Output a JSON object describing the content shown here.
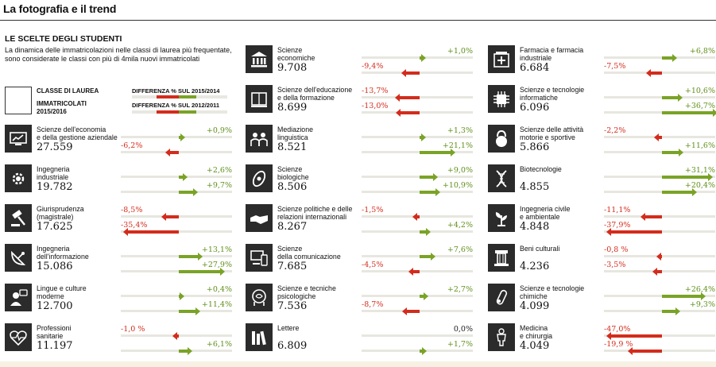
{
  "header": {
    "title": "La fotografia e il trend"
  },
  "chart_data": {
    "type": "bar",
    "subtitle": "LE SCELTE DEGLI STUDENTI",
    "intro_lines": [
      "La dinamica delle immatricolazioni nelle classi di laurea più frequentate,",
      "sono considerate le classi con più di 4mila nuovi immatricolati"
    ],
    "legend": {
      "class_label": "CLASSE DI LAUREA",
      "enrolled_label_1": "IMMATRICOLATI",
      "enrolled_label_2": "2015/2016"
    },
    "series": [
      {
        "name": "DIFFERENZA % SUL 2015/2014"
      },
      {
        "name": "DIFFERENZA % SUL 2012/2011"
      }
    ],
    "colors": {
      "positive": "#7aa326",
      "negative": "#d32c1c",
      "track": "#e7e7e0",
      "icon_bg": "#2b2b2b"
    },
    "classes": [
      {
        "name": [
          "Scienze dell'economia",
          "e della gestione aziendale"
        ],
        "enrolled": "27.559",
        "d1": 0.9,
        "d1_label": "+0,9%",
        "d2": -6.2,
        "d2_label": "-6,2%",
        "icon": "chart-icon"
      },
      {
        "name": [
          "Ingegneria",
          "industriale"
        ],
        "enrolled": "19.782",
        "d1": 2.6,
        "d1_label": "+2,6%",
        "d2": 9.7,
        "d2_label": "+9,7%",
        "icon": "gear-icon"
      },
      {
        "name": [
          "Giurisprudenza",
          "(magistrale)"
        ],
        "enrolled": "17.625",
        "d1": -8.5,
        "d1_label": "-8,5%",
        "d2": -35.4,
        "d2_label": "-35,4%",
        "icon": "gavel-icon"
      },
      {
        "name": [
          "Ingegneria",
          "dell'informazione"
        ],
        "enrolled": "15.086",
        "d1": 13.1,
        "d1_label": "+13,1%",
        "d2": 27.9,
        "d2_label": "+27,9%",
        "icon": "satellite-dish-icon"
      },
      {
        "name": [
          "Lingue e culture",
          "moderne"
        ],
        "enrolled": "12.700",
        "d1": 0.4,
        "d1_label": "+0,4%",
        "d2": 11.4,
        "d2_label": "+11,4%",
        "icon": "speech-icon"
      },
      {
        "name": [
          "Professioni",
          "sanitarie"
        ],
        "enrolled": "11.197",
        "d1": -1.0,
        "d1_label": "-1,0 %",
        "d2": 6.1,
        "d2_label": "+6,1%",
        "icon": "heartbeat-icon"
      },
      {
        "name": [
          "Scienze",
          "economiche"
        ],
        "enrolled": "9.708",
        "d1": 1.0,
        "d1_label": "+1,0%",
        "d2": -9.4,
        "d2_label": "-9,4%",
        "icon": "bank-icon"
      },
      {
        "name": [
          "Scienze dell'educazione",
          "e della formazione"
        ],
        "enrolled": "8.699",
        "d1": -13.7,
        "d1_label": "-13,7%",
        "d2": -13.0,
        "d2_label": "-13,0%",
        "icon": "book-icon"
      },
      {
        "name": [
          "Mediazione",
          "linguistica"
        ],
        "enrolled": "8.521",
        "d1": 1.3,
        "d1_label": "+1,3%",
        "d2": 21.1,
        "d2_label": "+21,1%",
        "icon": "people-icon"
      },
      {
        "name": [
          "Scienze",
          "biologiche"
        ],
        "enrolled": "8.506",
        "d1": 9.0,
        "d1_label": "+9,0%",
        "d2": 10.9,
        "d2_label": "+10,9%",
        "icon": "cell-icon"
      },
      {
        "name": [
          "Scienze politiche e delle",
          "relazioni internazionali"
        ],
        "enrolled": "8.267",
        "d1": -1.5,
        "d1_label": "-1,5%",
        "d2": 4.2,
        "d2_label": "+4,2%",
        "icon": "handshake-icon"
      },
      {
        "name": [
          "Scienze",
          "della comunicazione"
        ],
        "enrolled": "7.685",
        "d1": 7.6,
        "d1_label": "+7,6%",
        "d2": -4.5,
        "d2_label": "-4,5%",
        "icon": "devices-icon"
      },
      {
        "name": [
          "Scienze e tecniche",
          "psicologiche"
        ],
        "enrolled": "7.536",
        "d1": 2.7,
        "d1_label": "+2,7%",
        "d2": -8.7,
        "d2_label": "-8,7%",
        "icon": "brain-icon"
      },
      {
        "name": [
          "Lettere",
          ""
        ],
        "enrolled": "6.809",
        "d1": 0.0,
        "d1_label": "0,0%",
        "d2": 1.7,
        "d2_label": "+1,7%",
        "icon": "books-icon"
      },
      {
        "name": [
          "Farmacia e farmacia",
          "industriale"
        ],
        "enrolled": "6.684",
        "d1": 6.8,
        "d1_label": "+6,8%",
        "d2": -7.5,
        "d2_label": "-7,5%",
        "icon": "pharmacy-icon"
      },
      {
        "name": [
          "Scienze e tecnologie",
          "informatiche"
        ],
        "enrolled": "6.096",
        "d1": 10.6,
        "d1_label": "+10,6%",
        "d2": 36.7,
        "d2_label": "+36,7%",
        "icon": "chip-icon"
      },
      {
        "name": [
          "Scienze delle attività",
          "motorie e sportive"
        ],
        "enrolled": "5.866",
        "d1": -2.2,
        "d1_label": "-2,2%",
        "d2": 11.6,
        "d2_label": "+11,6%",
        "icon": "kettlebell-icon"
      },
      {
        "name": [
          "Biotecnologie",
          ""
        ],
        "enrolled": "4.855",
        "d1": 31.1,
        "d1_label": "+31,1%",
        "d2": 20.4,
        "d2_label": "+20,4%",
        "icon": "dna-icon"
      },
      {
        "name": [
          "Ingegneria civile",
          "e ambientale"
        ],
        "enrolled": "4.848",
        "d1": -11.1,
        "d1_label": "-11,1%",
        "d2": -37.9,
        "d2_label": "-37,9%",
        "icon": "plant-icon"
      },
      {
        "name": [
          "Beni culturali",
          ""
        ],
        "enrolled": "4.236",
        "d1": -0.8,
        "d1_label": "-0,8 %",
        "d2": -3.5,
        "d2_label": "-3,5%",
        "icon": "column-icon"
      },
      {
        "name": [
          "Scienze e tecnologie",
          "chimiche"
        ],
        "enrolled": "4.099",
        "d1": 26.4,
        "d1_label": "+26,4%",
        "d2": 9.3,
        "d2_label": "+9,3%",
        "icon": "test-tube-icon"
      },
      {
        "name": [
          "Medicina",
          "e chirurgia"
        ],
        "enrolled": "4.049",
        "d1": -47.0,
        "d1_label": "-47,0%",
        "d2": -19.9,
        "d2_label": "-19,9 %",
        "icon": "body-icon"
      }
    ]
  }
}
